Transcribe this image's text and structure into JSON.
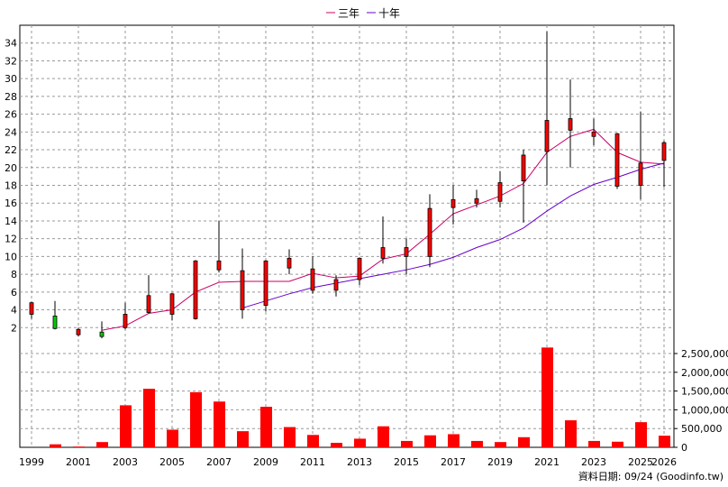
{
  "chart_data": {
    "type": "candlestick",
    "legend": {
      "placement": "top-center",
      "items": [
        {
          "name": "三年",
          "color": "#cc0066"
        },
        {
          "name": "十年",
          "color": "#6600cc"
        }
      ]
    },
    "x_tick_labels": [
      "1999",
      "2001",
      "2003",
      "2005",
      "2007",
      "2009",
      "2011",
      "2013",
      "2015",
      "2017",
      "2019",
      "2021",
      "2023",
      "2025",
      "2026"
    ],
    "price_axis": {
      "min": 0,
      "max": 36,
      "ticks": [
        "2",
        "4",
        "6",
        "8",
        "10",
        "12",
        "14",
        "16",
        "18",
        "20",
        "22",
        "24",
        "26",
        "28",
        "30",
        "32",
        "34"
      ]
    },
    "volume_axis": {
      "min": 0,
      "max": 2500000,
      "ticks": [
        "0",
        "500,000",
        "1,000,000",
        "1,500,000",
        "2,000,000",
        "2,500,000"
      ]
    },
    "grid": true,
    "years": [
      1999,
      2000,
      2001,
      2002,
      2003,
      2004,
      2005,
      2006,
      2007,
      2008,
      2009,
      2010,
      2011,
      2012,
      2013,
      2014,
      2015,
      2016,
      2017,
      2018,
      2019,
      2020,
      2021,
      2022,
      2023,
      2024,
      2025,
      2026
    ],
    "candles": [
      {
        "o": 3.5,
        "h": 4.9,
        "l": 3.0,
        "c": 4.8
      },
      {
        "o": 3.3,
        "h": 5.0,
        "l": 1.8,
        "c": 1.9
      },
      {
        "o": 1.2,
        "h": 2.0,
        "l": 1.0,
        "c": 1.8
      },
      {
        "o": 1.5,
        "h": 2.7,
        "l": 0.8,
        "c": 1.0
      },
      {
        "o": 2.0,
        "h": 4.8,
        "l": 1.8,
        "c": 3.5
      },
      {
        "o": 3.7,
        "h": 7.9,
        "l": 3.6,
        "c": 5.6
      },
      {
        "o": 3.5,
        "h": 5.9,
        "l": 2.8,
        "c": 5.8
      },
      {
        "o": 3.0,
        "h": 9.6,
        "l": 2.9,
        "c": 9.5
      },
      {
        "o": 8.5,
        "h": 14.0,
        "l": 8.2,
        "c": 9.5
      },
      {
        "o": 4.0,
        "h": 10.9,
        "l": 3.0,
        "c": 8.4
      },
      {
        "o": 4.5,
        "h": 9.6,
        "l": 3.8,
        "c": 9.5
      },
      {
        "o": 8.7,
        "h": 10.8,
        "l": 8.0,
        "c": 9.8
      },
      {
        "o": 6.2,
        "h": 10.0,
        "l": 5.8,
        "c": 8.6
      },
      {
        "o": 6.2,
        "h": 7.9,
        "l": 5.5,
        "c": 7.4
      },
      {
        "o": 7.4,
        "h": 9.9,
        "l": 6.8,
        "c": 9.8
      },
      {
        "o": 9.8,
        "h": 14.5,
        "l": 9.2,
        "c": 11.0
      },
      {
        "o": 10.0,
        "h": 12.0,
        "l": 8.0,
        "c": 11.0
      },
      {
        "o": 10.0,
        "h": 17.0,
        "l": 8.8,
        "c": 15.4
      },
      {
        "o": 15.5,
        "h": 18.0,
        "l": 13.6,
        "c": 16.4
      },
      {
        "o": 16.0,
        "h": 17.5,
        "l": 15.5,
        "c": 16.5
      },
      {
        "o": 16.2,
        "h": 19.6,
        "l": 15.5,
        "c": 18.3
      },
      {
        "o": 18.5,
        "h": 22.0,
        "l": 13.8,
        "c": 21.4
      },
      {
        "o": 21.8,
        "h": 35.3,
        "l": 18.0,
        "c": 25.3
      },
      {
        "o": 24.2,
        "h": 29.9,
        "l": 20.0,
        "c": 25.5
      },
      {
        "o": 23.5,
        "h": 25.5,
        "l": 22.5,
        "c": 24.0
      },
      {
        "o": 17.9,
        "h": 23.9,
        "l": 17.6,
        "c": 23.8
      },
      {
        "o": 18.0,
        "h": 26.3,
        "l": 16.4,
        "c": 20.5
      },
      {
        "o": 20.8,
        "h": 23.0,
        "l": 17.8,
        "c": 22.8
      }
    ],
    "series": [
      {
        "name": "三年",
        "values": [
          null,
          null,
          null,
          1.7,
          2.2,
          3.6,
          4.0,
          6.0,
          7.1,
          7.2,
          7.2,
          7.2,
          8.1,
          7.6,
          7.8,
          9.7,
          10.3,
          12.5,
          14.8,
          15.8,
          16.8,
          18.2,
          21.7,
          23.5,
          24.3,
          21.7,
          20.6,
          20.4
        ]
      },
      {
        "name": "十年",
        "values": [
          null,
          null,
          null,
          null,
          null,
          null,
          null,
          null,
          null,
          4.2,
          5.0,
          5.8,
          6.5,
          7.0,
          7.5,
          8.0,
          8.5,
          9.1,
          9.9,
          11.0,
          11.9,
          13.2,
          15.1,
          16.8,
          18.1,
          18.9,
          19.8,
          20.5
        ]
      }
    ],
    "volumes": [
      0,
      80000,
      20000,
      140000,
      1120000,
      1560000,
      470000,
      1470000,
      1220000,
      430000,
      1080000,
      540000,
      330000,
      120000,
      230000,
      560000,
      170000,
      320000,
      350000,
      170000,
      140000,
      270000,
      2660000,
      720000,
      170000,
      150000,
      670000,
      310000
    ]
  },
  "source_text": "資料日期: 09/24   (Goodinfo.tw)"
}
